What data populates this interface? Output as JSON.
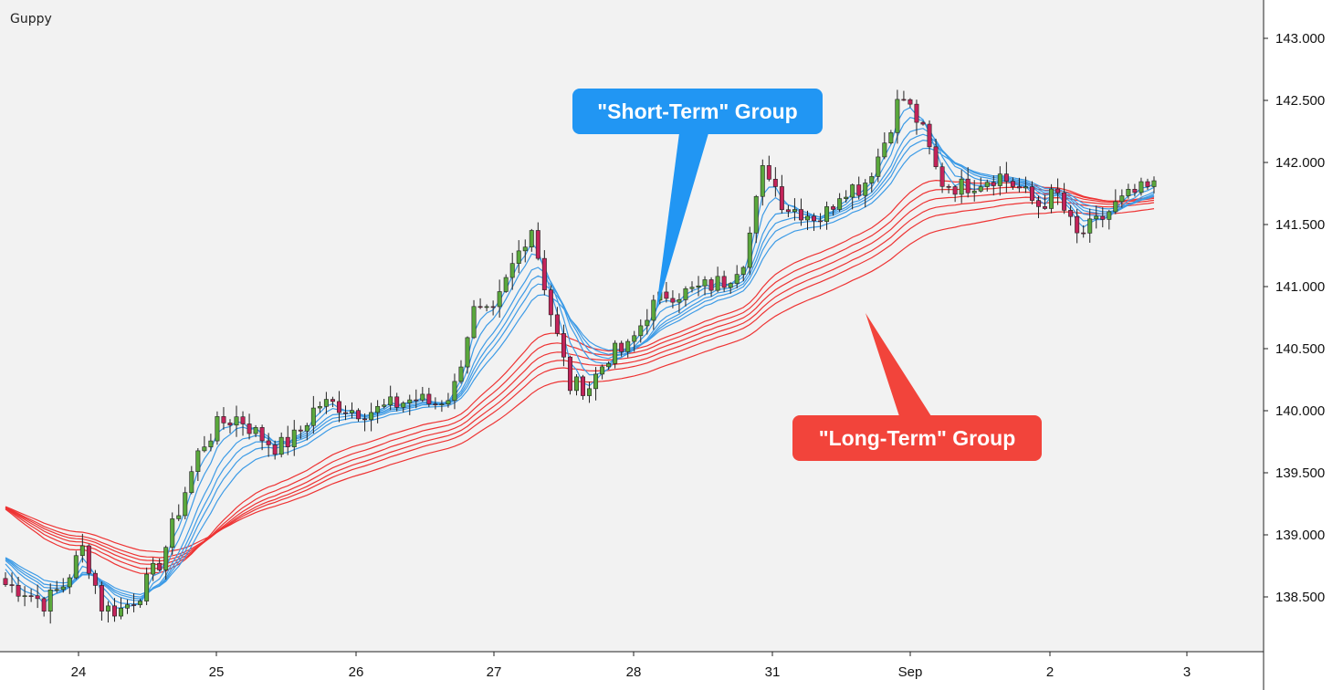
{
  "chart_data": {
    "type": "candlestick",
    "title": "Guppy",
    "x_tick_labels": [
      "24",
      "25",
      "26",
      "27",
      "28",
      "31",
      "Sep",
      "2",
      "3"
    ],
    "y_tick_labels": [
      "138.500",
      "139.000",
      "139.500",
      "140.000",
      "140.500",
      "141.000",
      "141.500",
      "142.000",
      "142.500",
      "143.000"
    ],
    "ylim": [
      138.05,
      143.25
    ],
    "grid": false,
    "colors": {
      "up_candle": "#5aa83c",
      "down_candle": "#c4245a",
      "short_term_group": "#3d9be6",
      "long_term_group": "#ee3333",
      "background": "#f2f2f2"
    },
    "annotations": [
      {
        "name": "short-term",
        "text": "\"Short-Term\" Group",
        "color": "#2196f3"
      },
      {
        "name": "long-term",
        "text": "\"Long-Term\" Group",
        "color": "#f2443b"
      }
    ],
    "series": [
      {
        "name": "Short-Term Group",
        "role": "short",
        "count": 6
      },
      {
        "name": "Long-Term Group",
        "role": "long",
        "count": 6
      }
    ],
    "key_closes": [
      138.6,
      138.55,
      138.45,
      138.6,
      138.9,
      138.4,
      138.4,
      138.55,
      138.8,
      139.25,
      139.7,
      139.9,
      139.95,
      139.8,
      139.7,
      139.8,
      140.05,
      140.05,
      140.0,
      140.0,
      140.05,
      140.1,
      140.05,
      140.15,
      140.8,
      140.75,
      141.15,
      141.5,
      140.8,
      140.2,
      140.2,
      140.45,
      140.5,
      140.8,
      140.95,
      140.95,
      141.0,
      141.05,
      141.25,
      142.0,
      141.65,
      141.6,
      141.55,
      141.8,
      141.8,
      142.1,
      142.55,
      142.3,
      141.85,
      141.8,
      141.85,
      141.9,
      141.8,
      141.65,
      141.75,
      141.4,
      141.5,
      141.65,
      141.75,
      141.8
    ]
  }
}
